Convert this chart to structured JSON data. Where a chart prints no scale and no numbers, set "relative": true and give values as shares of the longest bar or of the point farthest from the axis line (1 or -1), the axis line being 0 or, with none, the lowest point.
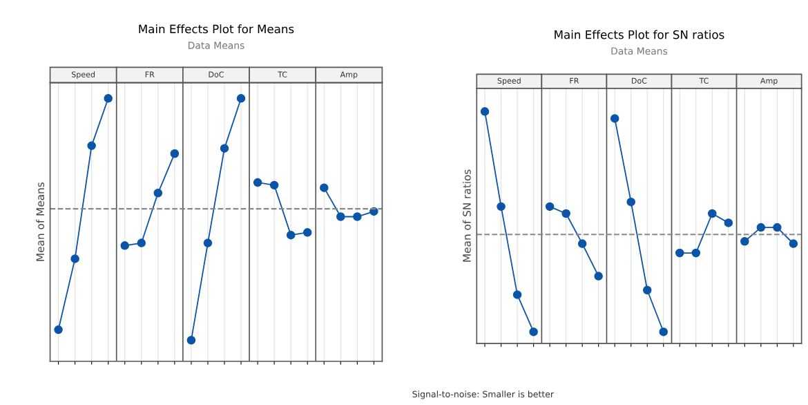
{
  "chart_data": [
    {
      "type": "line",
      "title": "Main Effects Plot for Means",
      "subtitle": "Data Means",
      "ylabel": "Mean of Means",
      "relative": true,
      "grid": "x",
      "marker": "circle",
      "line_style": "solid",
      "annotations": [
        "Speed",
        "FR",
        "DoC",
        "TC",
        "Amp"
      ],
      "categories": [
        null,
        null,
        null,
        null,
        null,
        null,
        null,
        null,
        null,
        null,
        null,
        null,
        null,
        null,
        null,
        null,
        null,
        null,
        null,
        null
      ],
      "series": [
        {
          "color": "#0a55a8",
          "values": [
            0.12,
            0.39,
            0.82,
            1.0,
            null,
            null,
            null,
            null,
            null,
            null,
            null,
            null,
            null,
            null,
            null,
            null,
            null,
            null,
            null,
            null
          ]
        },
        {
          "color": "#0a55a8",
          "values": [
            null,
            null,
            null,
            null,
            0.44,
            0.45,
            0.64,
            0.79,
            null,
            null,
            null,
            null,
            null,
            null,
            null,
            null,
            null,
            null,
            null,
            null
          ]
        },
        {
          "color": "#0a55a8",
          "values": [
            null,
            null,
            null,
            null,
            null,
            null,
            null,
            null,
            0.08,
            0.45,
            0.81,
            1.0,
            null,
            null,
            null,
            null,
            null,
            null,
            null,
            null
          ]
        },
        {
          "color": "#0a55a8",
          "values": [
            null,
            null,
            null,
            null,
            null,
            null,
            null,
            null,
            null,
            null,
            null,
            null,
            0.68,
            0.67,
            0.48,
            0.49,
            null,
            null,
            null,
            null
          ]
        },
        {
          "color": "#0a55a8",
          "values": [
            null,
            null,
            null,
            null,
            null,
            null,
            null,
            null,
            null,
            null,
            null,
            null,
            null,
            null,
            null,
            null,
            0.66,
            0.55,
            0.55,
            0.57
          ]
        }
      ],
      "ref_lines": [
        {
          "axis": "y",
          "value": 0.58,
          "color": "#888888",
          "line_style": "dashed"
        }
      ]
    },
    {
      "type": "line",
      "title": "Main Effects Plot for SN ratios",
      "subtitle": "Data Means",
      "ylabel": "Mean of SN ratios",
      "relative": true,
      "grid": "x",
      "marker": "circle",
      "line_style": "solid",
      "annotations": [
        "Speed",
        "FR",
        "DoC",
        "TC",
        "Amp",
        "Signal-to-noise: Smaller is better"
      ],
      "categories": [
        null,
        null,
        null,
        null,
        null,
        null,
        null,
        null,
        null,
        null,
        null,
        null,
        null,
        null,
        null,
        null,
        null,
        null,
        null,
        null
      ],
      "series": [
        {
          "color": "#0a55a8",
          "values": [
            1.0,
            0.59,
            0.21,
            0.05,
            null,
            null,
            null,
            null,
            null,
            null,
            null,
            null,
            null,
            null,
            null,
            null,
            null,
            null,
            null,
            null
          ]
        },
        {
          "color": "#0a55a8",
          "values": [
            null,
            null,
            null,
            null,
            0.59,
            0.56,
            0.43,
            0.29,
            null,
            null,
            null,
            null,
            null,
            null,
            null,
            null,
            null,
            null,
            null,
            null
          ]
        },
        {
          "color": "#0a55a8",
          "values": [
            null,
            null,
            null,
            null,
            null,
            null,
            null,
            null,
            0.97,
            0.61,
            0.23,
            0.05,
            null,
            null,
            null,
            null,
            null,
            null,
            null,
            null
          ]
        },
        {
          "color": "#0a55a8",
          "values": [
            null,
            null,
            null,
            null,
            null,
            null,
            null,
            null,
            null,
            null,
            null,
            null,
            0.39,
            0.39,
            0.56,
            0.52,
            null,
            null,
            null,
            null
          ]
        },
        {
          "color": "#0a55a8",
          "values": [
            null,
            null,
            null,
            null,
            null,
            null,
            null,
            null,
            null,
            null,
            null,
            null,
            null,
            null,
            null,
            null,
            0.44,
            0.5,
            0.5,
            0.43
          ]
        }
      ],
      "ref_lines": [
        {
          "axis": "y",
          "value": 0.47,
          "color": "#888888",
          "line_style": "dashed"
        }
      ]
    }
  ]
}
